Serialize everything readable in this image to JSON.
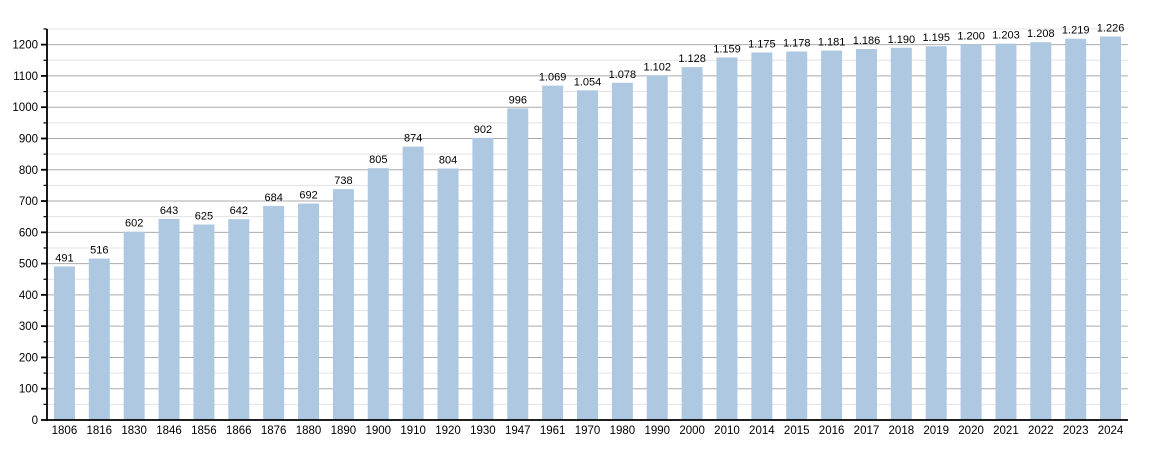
{
  "chart_data": {
    "type": "bar",
    "title": "",
    "xlabel": "",
    "ylabel": "",
    "legend_position": "none",
    "grid": true,
    "categories": [
      "1806",
      "1816",
      "1830",
      "1846",
      "1856",
      "1866",
      "1876",
      "1880",
      "1890",
      "1900",
      "1910",
      "1920",
      "1930",
      "1947",
      "1961",
      "1970",
      "1980",
      "1990",
      "2000",
      "2010",
      "2014",
      "2015",
      "2016",
      "2017",
      "2018",
      "2019",
      "2020",
      "2021",
      "2022",
      "2023",
      "2024"
    ],
    "values": [
      491,
      516,
      602,
      643,
      625,
      642,
      684,
      692,
      738,
      805,
      874,
      804,
      902,
      996,
      1069,
      1054,
      1078,
      1102,
      1128,
      1159,
      1175,
      1178,
      1181,
      1186,
      1190,
      1195,
      1200,
      1203,
      1208,
      1219,
      1226
    ],
    "value_labels": [
      "491",
      "516",
      "602",
      "643",
      "625",
      "642",
      "684",
      "692",
      "738",
      "805",
      "874",
      "804",
      "902",
      "996",
      "1.069",
      "1.054",
      "1.078",
      "1.102",
      "1.128",
      "1.159",
      "1.175",
      "1.178",
      "1.181",
      "1.186",
      "1.190",
      "1.195",
      "1.200",
      "1.203",
      "1.208",
      "1.219",
      "1.226"
    ],
    "y_tick_labels": [
      "0",
      "100",
      "200",
      "300",
      "400",
      "500",
      "600",
      "700",
      "800",
      "900",
      "1000",
      "1100",
      "1200"
    ],
    "ylim": [
      0,
      1250
    ],
    "y_major_step": 100,
    "y_minor_step": 50,
    "colors": {
      "bar": "#aec8e2",
      "grid_major": "#ababab",
      "grid_minor": "#e3e3e3",
      "axis": "#000000",
      "text": "#000000",
      "background": "#ffffff"
    }
  }
}
